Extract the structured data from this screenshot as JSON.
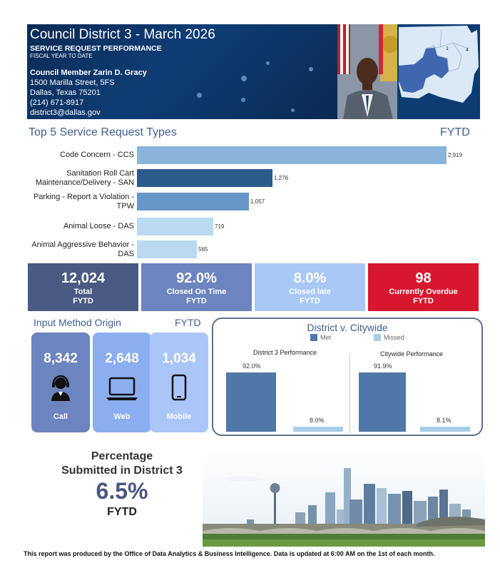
{
  "header": {
    "title": "Council District 3 - March 2026",
    "subtitle": "SERVICE REQUEST PERFORMANCE",
    "period": "FISCAL YEAR TO DATE",
    "council_member": "Council Member Zarin D. Gracy",
    "address_line1": "1500 Marilla Street, 5FS",
    "address_line2": "Dallas, Texas 75201",
    "phone": "(214) 671-8917",
    "email": "district3@dallas.gov",
    "map_labels": [
      "1",
      "4"
    ]
  },
  "top5": {
    "title": "Top 5 Service Request Types",
    "period": "FYTD",
    "chart_data": {
      "type": "bar",
      "orientation": "horizontal",
      "categories": [
        "Code Concern - CCS",
        "Sanitation Roll Cart Maintenance/Delivery - SAN",
        "Parking - Report a Violation - TPW",
        "Animal Loose - DAS",
        "Animal Aggressive Behavior - DAS"
      ],
      "labels": [
        [
          "Code Concern - CCS"
        ],
        [
          "Sanitation Roll Cart",
          "Maintenance/Delivery - SAN"
        ],
        [
          "Parking - Report a Violation -",
          "TPW"
        ],
        [
          "Animal Loose - DAS"
        ],
        [
          "Animal Aggressive Behavior -",
          "DAS"
        ]
      ],
      "values": [
        2919,
        1276,
        1057,
        719,
        565
      ],
      "value_labels": [
        "2,919",
        "1,276",
        "1,057",
        "719",
        "565"
      ],
      "colors": [
        "#8ab4d9",
        "#2c5a8a",
        "#6797c6",
        "#b9daf0",
        "#b9daf0"
      ],
      "xlim": [
        0,
        2919
      ]
    }
  },
  "kpis": [
    {
      "value": "12,024",
      "label": "Total",
      "period": "FYTD",
      "color": "#4a5a82"
    },
    {
      "value": "92.0%",
      "label": "Closed On Time",
      "period": "FYTD",
      "color": "#6c84bf"
    },
    {
      "value": "8.0%",
      "label": "Closed late",
      "period": "FYTD",
      "color": "#a9c8f5"
    },
    {
      "value": "98",
      "label": "Currently Overdue",
      "period": "FYTD",
      "color": "#d7162f"
    }
  ],
  "input_method": {
    "title": "Input Method Origin",
    "period": "FYTD",
    "items": [
      {
        "value": "8,342",
        "label": "Call",
        "icon": "call-center-icon",
        "color": "#6c84bf"
      },
      {
        "value": "2,648",
        "label": "Web",
        "icon": "laptop-icon",
        "color": "#8aaef0"
      },
      {
        "value": "1,034",
        "label": "Mobile",
        "icon": "mobile-phone-icon",
        "color": "#aac5f8"
      }
    ]
  },
  "district_v_citywide": {
    "title": "District v. Citywide",
    "legend": [
      {
        "label": "Met",
        "color": "#4f77a7"
      },
      {
        "label": "Missed",
        "color": "#a8cde8"
      }
    ],
    "chart_data": [
      {
        "type": "bar",
        "title": "District 3 Performance",
        "categories": [
          "Met",
          "Missed"
        ],
        "values": [
          92.0,
          8.0
        ],
        "value_labels": [
          "92.0%",
          "8.0%"
        ],
        "ylim": [
          0,
          100
        ]
      },
      {
        "type": "bar",
        "title": "Citywide Performance",
        "categories": [
          "Met",
          "Missed"
        ],
        "values": [
          91.9,
          8.1
        ],
        "value_labels": [
          "91.9%",
          "8.1%"
        ],
        "ylim": [
          0,
          100
        ]
      }
    ]
  },
  "percentage": {
    "title_line1": "Percentage",
    "title_line2": "Submitted in District 3",
    "value": "6.5%",
    "period": "FYTD"
  },
  "footer": "This report was produced by the Office of Data Analytics & Business Intelligence. Data is updated at 6:00 AM on the 1st of each month."
}
